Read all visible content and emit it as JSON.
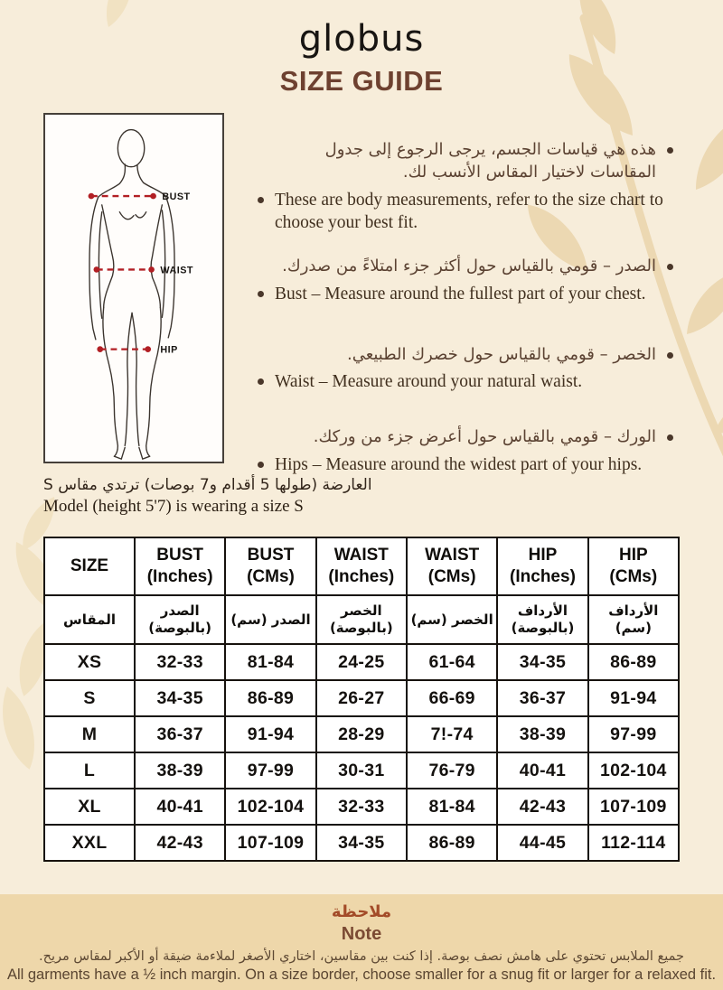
{
  "colors": {
    "page_bg": "#f7edda",
    "accent_brown": "#6e4130",
    "note_bg": "#eed7aa",
    "measure_line_red": "#b21f24",
    "leaf_beige": "#ecd8b2"
  },
  "header": {
    "logo": "globus",
    "title": "SIZE GUIDE"
  },
  "figure": {
    "labels": {
      "bust": "BUST",
      "waist": "WAIST",
      "hip": "HIP"
    }
  },
  "measure_points": [
    {
      "ar": "هذه هي قياسات الجسم، يرجى الرجوع إلى جدول المقاسات لاختيار المقاس الأنسب لك.",
      "en": "These are body measurements, refer to the size chart to choose your best fit."
    },
    {
      "ar": "الصدر – قومي بالقياس حول أكثر جزء امتلاءً من صدرك.",
      "en": "Bust – Measure around the fullest part of your chest."
    },
    {
      "ar": "الخصر – قومي بالقياس حول خصرك الطبيعي.",
      "en": "Waist – Measure around your natural waist."
    },
    {
      "ar": "الورك – قومي بالقياس حول أعرض جزء من وركك.",
      "en": "Hips – Measure around the widest part of your hips."
    }
  ],
  "model": {
    "ar": "العارضة (طولها 5 أقدام و7 بوصات) ترتدي مقاس S",
    "en": "Model (height 5'7) is wearing a size S"
  },
  "size_table": {
    "columns_en": [
      {
        "l1": "SIZE",
        "l2": ""
      },
      {
        "l1": "BUST",
        "l2": "(Inches)"
      },
      {
        "l1": "BUST",
        "l2": "(CMs)"
      },
      {
        "l1": "WAIST",
        "l2": "(Inches)"
      },
      {
        "l1": "WAIST",
        "l2": "(CMs)"
      },
      {
        "l1": "HIP",
        "l2": "(Inches)"
      },
      {
        "l1": "HIP",
        "l2": "(CMs)"
      }
    ],
    "columns_ar": [
      "المقاس",
      "الصدر (بالبوصة)",
      "الصدر (سم)",
      "الخصر (بالبوصة)",
      "الخصر (سم)",
      "الأرداف (بالبوصة)",
      "الأرداف (سم)"
    ],
    "rows": [
      [
        "XS",
        "32-33",
        "81-84",
        "24-25",
        "61-64",
        "34-35",
        "86-89"
      ],
      [
        "S",
        "34-35",
        "86-89",
        "26-27",
        "66-69",
        "36-37",
        "91-94"
      ],
      [
        "M",
        "36-37",
        "91-94",
        "28-29",
        "7!-74",
        "38-39",
        "97-99"
      ],
      [
        "L",
        "38-39",
        "97-99",
        "30-31",
        "76-79",
        "40-41",
        "102-104"
      ],
      [
        "XL",
        "40-41",
        "102-104",
        "32-33",
        "81-84",
        "42-43",
        "107-109"
      ],
      [
        "XXL",
        "42-43",
        "107-109",
        "34-35",
        "86-89",
        "44-45",
        "112-114"
      ]
    ]
  },
  "note": {
    "title_ar": "ملاحظة",
    "title_en": "Note",
    "body_ar": "جميع الملابس تحتوي على هامش نصف بوصة. إذا كنت بين مقاسين، اختاري الأصغر لملاءمة ضيقة أو الأكبر لمقاس مريح.",
    "body_en": "All garments have a ½ inch margin. On a size border, choose smaller for a snug fit or larger for a relaxed fit."
  }
}
